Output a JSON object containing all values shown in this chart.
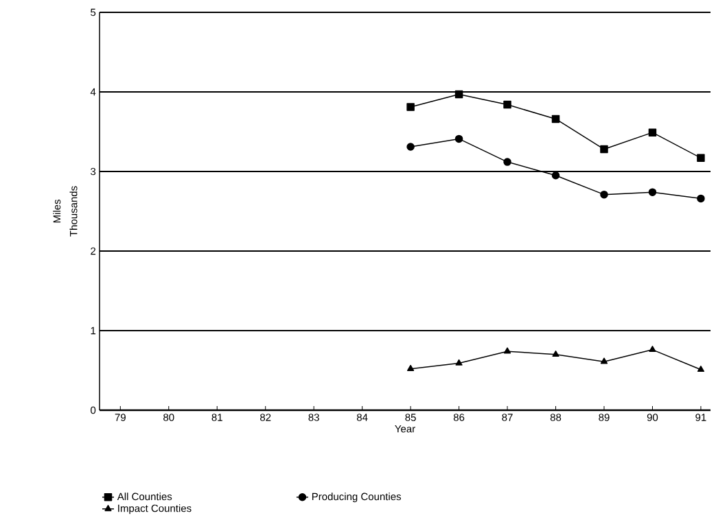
{
  "chart_data": {
    "type": "line",
    "xlabel": "Year",
    "ylabel": "Miles",
    "annotations": [
      "Thousands"
    ],
    "categories": [
      "79",
      "80",
      "81",
      "82",
      "83",
      "84",
      "85",
      "86",
      "87",
      "88",
      "89",
      "90",
      "91"
    ],
    "series": [
      {
        "name": "All Counties",
        "color": "#000000",
        "marker": "square",
        "values": [
          null,
          null,
          null,
          null,
          null,
          null,
          3.81,
          3.97,
          3.84,
          3.66,
          3.28,
          3.49,
          3.17
        ]
      },
      {
        "name": "Producing Counties",
        "color": "#000000",
        "marker": "circle",
        "values": [
          null,
          null,
          null,
          null,
          null,
          null,
          3.31,
          3.41,
          3.12,
          2.95,
          2.71,
          2.74,
          2.66
        ]
      },
      {
        "name": "Impact Counties",
        "color": "#000000",
        "marker": "triangle",
        "values": [
          null,
          null,
          null,
          null,
          null,
          null,
          0.52,
          0.59,
          0.74,
          0.7,
          0.61,
          0.76,
          0.51
        ]
      }
    ],
    "ylim": [
      0,
      5
    ],
    "yticks": [
      0,
      1,
      2,
      3,
      4,
      5
    ],
    "grid": "y",
    "legend": "bottom",
    "line_style": "solid"
  }
}
